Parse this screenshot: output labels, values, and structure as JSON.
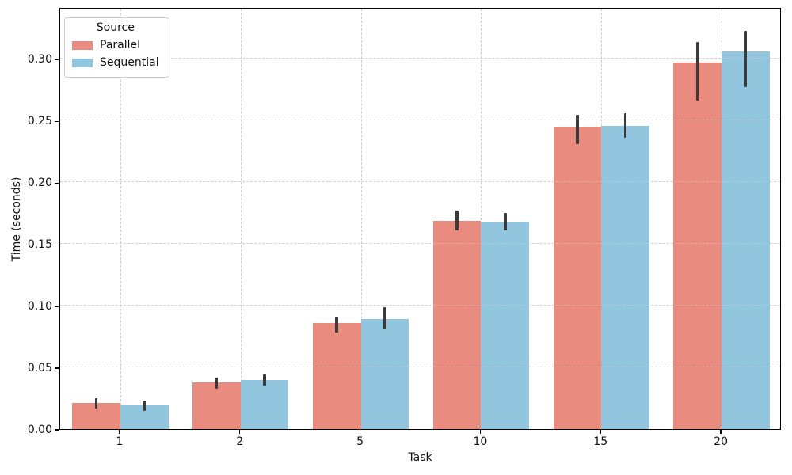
{
  "chart_data": {
    "type": "bar",
    "title": "",
    "xlabel": "Task",
    "ylabel": "Time (seconds)",
    "categories": [
      "1",
      "2",
      "5",
      "10",
      "15",
      "20"
    ],
    "series": [
      {
        "name": "Parallel",
        "color": "#e98b7e",
        "values": [
          0.021,
          0.038,
          0.086,
          0.169,
          0.245,
          0.297
        ],
        "ci_low": [
          0.017,
          0.033,
          0.078,
          0.161,
          0.231,
          0.266
        ],
        "ci_high": [
          0.025,
          0.042,
          0.091,
          0.177,
          0.255,
          0.314
        ]
      },
      {
        "name": "Sequential",
        "color": "#92c6de",
        "values": [
          0.019,
          0.04,
          0.089,
          0.168,
          0.246,
          0.306
        ],
        "ci_low": [
          0.015,
          0.035,
          0.081,
          0.161,
          0.236,
          0.277
        ],
        "ci_high": [
          0.023,
          0.044,
          0.099,
          0.175,
          0.256,
          0.323
        ]
      }
    ],
    "ylim": [
      0,
      0.342
    ],
    "yticks": [
      0.0,
      0.05,
      0.1,
      0.15,
      0.2,
      0.25,
      0.3
    ],
    "grid": true,
    "grid_style": "dashed",
    "errorbar_color": "#3a3a3a",
    "legend_title": "Source",
    "legend_position": "upper left",
    "bar_group_width": 0.8
  }
}
